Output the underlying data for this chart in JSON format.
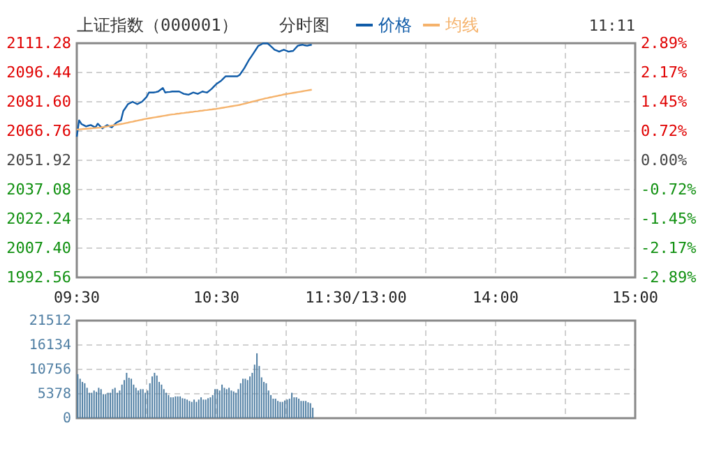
{
  "chart_data": [
    {
      "type": "line",
      "title": "上证指数（000001）",
      "subtitle": "分时图",
      "annotations": [
        "11:11"
      ],
      "legend": "top",
      "categories": [
        "09:30",
        null,
        null,
        null,
        null,
        null,
        null,
        null,
        null,
        null,
        null,
        null,
        null,
        null,
        null,
        null,
        null,
        null,
        null,
        null,
        null,
        null,
        null,
        null,
        null,
        null,
        null,
        null,
        null,
        null,
        null,
        null,
        null,
        null,
        null,
        null,
        null,
        null,
        null,
        null,
        null,
        null,
        null,
        null,
        null,
        null,
        null,
        null,
        null,
        null,
        null,
        null,
        null,
        null,
        null,
        null,
        null,
        null,
        null,
        null,
        "10:30",
        null,
        null,
        null,
        null,
        null,
        null,
        null,
        null,
        null,
        null,
        null,
        null,
        null,
        null,
        null,
        null,
        null,
        null,
        null,
        null,
        null,
        null,
        null,
        null,
        null,
        null,
        null,
        null,
        null,
        null,
        null,
        null,
        null,
        null,
        null,
        null,
        null,
        null,
        null,
        null,
        null,
        null,
        null,
        null,
        null,
        null,
        null,
        null,
        null,
        null,
        null,
        null,
        null,
        null,
        null,
        null,
        null,
        null,
        null,
        "11:30/13:00",
        null,
        null,
        null,
        null,
        null,
        null,
        null,
        null,
        null,
        null,
        null,
        null,
        null,
        null,
        null,
        null,
        null,
        null,
        null,
        null,
        null,
        null,
        null,
        null,
        null,
        null,
        null,
        null,
        null,
        null,
        null,
        null,
        null,
        null,
        null,
        null,
        null,
        null,
        null,
        null,
        null,
        null,
        null,
        null,
        null,
        null,
        null,
        null,
        null,
        null,
        null,
        null,
        null,
        null,
        null,
        null,
        null,
        null,
        null,
        "14:00",
        null,
        null,
        null,
        null,
        null,
        null,
        null,
        null,
        null,
        null,
        null,
        null,
        null,
        null,
        null,
        null,
        null,
        null,
        null,
        null,
        null,
        null,
        null,
        null,
        null,
        null,
        null,
        null,
        null,
        null,
        null,
        null,
        null,
        null,
        null,
        null,
        null,
        null,
        null,
        null,
        null,
        null,
        null,
        null,
        null,
        null,
        null,
        null,
        null,
        null,
        null,
        null,
        null,
        null,
        null,
        null,
        null,
        null,
        null,
        "15:00"
      ],
      "ylim": [
        1992.56,
        2111.28
      ],
      "yticks": [
        1992.56,
        {
          "value": 2007.4,
          "label": "2007.40"
        },
        2022.24,
        2037.08,
        2051.92,
        2066.76,
        {
          "value": 2081.6,
          "label": "2081.60"
        },
        2096.44,
        2111.28
      ],
      "y2lim": [
        -2.89,
        2.89
      ],
      "y2ticks": [
        {
          "value": -2.89,
          "label": "-2.89%"
        },
        {
          "value": -2.17,
          "label": "-2.17%"
        },
        {
          "value": -1.45,
          "label": "-1.45%"
        },
        {
          "value": -0.72,
          "label": "-0.72%"
        },
        {
          "value": 0,
          "label": "0.00%"
        },
        {
          "value": 0.72,
          "label": "0.72%"
        },
        {
          "value": 1.45,
          "label": "1.45%"
        },
        {
          "value": 2.17,
          "label": "2.17%"
        },
        {
          "value": 2.89,
          "label": "2.89%"
        }
      ],
      "grid": true,
      "marker": "none",
      "line_style": "solid",
      "series": [
        {
          "name": "价格",
          "color": "#0f5ba8",
          "values": [
            2063.9,
            2072.2,
            2070.3,
            2069.7,
            2069.1,
            2069.5,
            2069.8,
            2069.2,
            2068.6,
            2070.5,
            2069.3,
            2068.1,
            2069.0,
            2069.8,
            2069.2,
            2068.6,
            2069.8,
            2071.0,
            2071.6,
            2072.2,
            2076.9,
            2078.6,
            2080.4,
            2081.0,
            2081.6,
            2081.0,
            2080.4,
            2081.0,
            2081.6,
            2082.8,
            2084.0,
            2086.3,
            2086.3,
            2086.3,
            2086.5,
            2086.8,
            2087.7,
            2088.6,
            2086.3,
            2086.5,
            2086.6,
            2086.8,
            2086.8,
            2086.8,
            2086.8,
            2086.2,
            2085.6,
            2085.4,
            2085.2,
            2085.7,
            2086.3,
            2086.0,
            2085.6,
            2086.2,
            2086.8,
            2086.5,
            2086.3,
            2087.2,
            2088.2,
            2089.4,
            2090.6,
            2091.4,
            2092.2,
            2093.4,
            2094.5,
            2094.5,
            2094.5,
            2094.5,
            2094.5,
            2094.5,
            2095.2,
            2096.9,
            2098.6,
            2100.7,
            2102.8,
            2104.5,
            2106.3,
            2108.1,
            2109.9,
            2110.5,
            2111.2,
            2111.2,
            2111.2,
            2110.2,
            2109.1,
            2108.0,
            2107.5,
            2107.0,
            2107.5,
            2108.0,
            2107.5,
            2107.0,
            2107.2,
            2107.4,
            2108.7,
            2110.0,
            2110.3,
            2110.5,
            2110.2,
            2110.0,
            2110.3,
            2110.5,
            null,
            null,
            null,
            null,
            null,
            null,
            null,
            null,
            null,
            null,
            null,
            null,
            null,
            null,
            null,
            null,
            null,
            null,
            null,
            null,
            null,
            null,
            null,
            null,
            null,
            null,
            null,
            null,
            null,
            null,
            null,
            null,
            null,
            null,
            null,
            null,
            null,
            null,
            null,
            null,
            null,
            null,
            null,
            null,
            null,
            null,
            null,
            null,
            null,
            null,
            null,
            null,
            null,
            null,
            null,
            null,
            null,
            null,
            null,
            null,
            null,
            null,
            null,
            null,
            null,
            null,
            null,
            null,
            null,
            null,
            null,
            null,
            null,
            null,
            null,
            null,
            null,
            null,
            null,
            null,
            null,
            null,
            null,
            null,
            null,
            null,
            null,
            null,
            null,
            null,
            null,
            null,
            null,
            null,
            null,
            null,
            null,
            null,
            null,
            null,
            null,
            null,
            null,
            null,
            null,
            null,
            null,
            null,
            null,
            null,
            null,
            null,
            null,
            null,
            null,
            null,
            null,
            null,
            null,
            null,
            null,
            null,
            null,
            null,
            null,
            null,
            null,
            null,
            null,
            null,
            null,
            null,
            null,
            null,
            null,
            null,
            null,
            null,
            null
          ]
        },
        {
          "name": "均线",
          "color": "#f5b26b",
          "values": [
            2067.5,
            2067.6,
            2067.7,
            2067.8,
            2067.9,
            2068.0,
            2068.1,
            2068.2,
            2068.3,
            2068.4,
            2068.5,
            2068.7,
            2068.9,
            2069.1,
            2069.3,
            2069.5,
            2069.7,
            2069.9,
            2070.1,
            2070.3,
            2070.5,
            2070.8,
            2071.0,
            2071.3,
            2071.5,
            2071.8,
            2072.0,
            2072.3,
            2072.5,
            2072.8,
            2073.0,
            2073.2,
            2073.4,
            2073.6,
            2073.8,
            2074.0,
            2074.2,
            2074.4,
            2074.6,
            2074.8,
            2075.0,
            2075.2,
            2075.3,
            2075.5,
            2075.6,
            2075.8,
            2075.9,
            2076.1,
            2076.2,
            2076.4,
            2076.5,
            2076.7,
            2076.8,
            2077.0,
            2077.1,
            2077.3,
            2077.4,
            2077.6,
            2077.7,
            2077.9,
            2078.0,
            2078.2,
            2078.4,
            2078.6,
            2078.8,
            2079.0,
            2079.2,
            2079.4,
            2079.6,
            2079.8,
            2080.0,
            2080.3,
            2080.6,
            2080.9,
            2081.2,
            2081.5,
            2081.8,
            2082.1,
            2082.4,
            2082.7,
            2083.0,
            2083.3,
            2083.5,
            2083.8,
            2084.0,
            2084.3,
            2084.5,
            2084.8,
            2085.0,
            2085.3,
            2085.5,
            2085.7,
            2085.9,
            2086.1,
            2086.3,
            2086.5,
            2086.7,
            2086.9,
            2087.1,
            2087.3,
            2087.5,
            2087.7,
            null,
            null,
            null,
            null,
            null,
            null,
            null,
            null,
            null,
            null,
            null,
            null,
            null,
            null,
            null,
            null,
            null,
            null,
            null,
            null,
            null,
            null,
            null,
            null,
            null,
            null,
            null,
            null,
            null,
            null,
            null,
            null,
            null,
            null,
            null,
            null,
            null,
            null,
            null,
            null,
            null,
            null,
            null,
            null,
            null,
            null,
            null,
            null,
            null,
            null,
            null,
            null,
            null,
            null,
            null,
            null,
            null,
            null,
            null,
            null,
            null,
            null,
            null,
            null,
            null,
            null,
            null,
            null,
            null,
            null,
            null,
            null,
            null,
            null,
            null,
            null,
            null,
            null,
            null,
            null,
            null,
            null,
            null,
            null,
            null,
            null,
            null,
            null,
            null,
            null,
            null,
            null,
            null,
            null,
            null,
            null,
            null,
            null,
            null,
            null,
            null,
            null,
            null,
            null,
            null,
            null,
            null,
            null,
            null,
            null,
            null,
            null,
            null,
            null,
            null,
            null,
            null,
            null,
            null,
            null,
            null,
            null,
            null,
            null,
            null,
            null,
            null,
            null,
            null,
            null,
            null,
            null,
            null,
            null,
            null,
            null,
            null,
            null,
            null
          ]
        }
      ]
    },
    {
      "type": "bar",
      "tick_labels": "y",
      "grid": true,
      "categories": [
        null,
        null,
        null,
        null,
        null,
        null,
        null,
        null,
        null,
        null,
        null,
        null,
        null,
        null,
        null,
        null,
        null,
        null,
        null,
        null,
        null,
        null,
        null,
        null,
        null,
        null,
        null,
        null,
        null,
        null,
        null,
        null,
        null,
        null,
        null,
        null,
        null,
        null,
        null,
        null,
        null,
        null,
        null,
        null,
        null,
        null,
        null,
        null,
        null,
        null,
        null,
        null,
        null,
        null,
        null,
        null,
        null,
        null,
        null,
        null,
        null,
        null,
        null,
        null,
        null,
        null,
        null,
        null,
        null,
        null,
        null,
        null,
        null,
        null,
        null,
        null,
        null,
        null,
        null,
        null,
        null,
        null,
        null,
        null,
        null,
        null,
        null,
        null,
        null,
        null,
        null,
        null,
        null,
        null,
        null,
        null,
        null,
        null,
        null,
        null,
        null,
        null,
        null,
        null,
        null,
        null,
        null,
        null,
        null,
        null,
        null,
        null,
        null,
        null,
        null,
        null,
        null,
        null,
        null,
        null,
        null,
        null,
        null,
        null,
        null,
        null,
        null,
        null,
        null,
        null,
        null,
        null,
        null,
        null,
        null,
        null,
        null,
        null,
        null,
        null,
        null,
        null,
        null,
        null,
        null,
        null,
        null,
        null,
        null,
        null,
        null,
        null,
        null,
        null,
        null,
        null,
        null,
        null,
        null,
        null,
        null,
        null,
        null,
        null,
        null,
        null,
        null,
        null,
        null,
        null,
        null,
        null,
        null,
        null,
        null,
        null,
        null,
        null,
        null,
        null,
        null,
        null,
        null,
        null,
        null,
        null,
        null,
        null,
        null,
        null,
        null,
        null,
        null,
        null,
        null,
        null,
        null,
        null,
        null,
        null,
        null,
        null,
        null,
        null,
        null,
        null,
        null,
        null,
        null,
        null,
        null,
        null,
        null,
        null,
        null,
        null,
        null,
        null,
        null,
        null,
        null,
        null,
        null,
        null,
        null,
        null,
        null,
        null,
        null,
        null,
        null,
        null,
        null,
        null,
        null,
        null,
        null,
        null,
        null,
        null,
        null
      ],
      "ylim": [
        0,
        21512
      ],
      "yticks": [
        0,
        5378,
        10756,
        16134,
        21512
      ],
      "series": [
        {
          "color": "#4f7ea3",
          "values": [
            9700,
            8700,
            8000,
            7700,
            6700,
            5600,
            5600,
            6100,
            5800,
            6700,
            6400,
            5300,
            5300,
            5600,
            5600,
            6400,
            6700,
            5600,
            6100,
            7400,
            8400,
            10000,
            8900,
            8700,
            7400,
            6700,
            6100,
            6400,
            6400,
            5600,
            6100,
            7700,
            9200,
            10000,
            9400,
            8000,
            7400,
            6400,
            5600,
            5100,
            4600,
            4600,
            4800,
            4800,
            4800,
            4400,
            4300,
            4100,
            3800,
            3600,
            4100,
            3600,
            4100,
            4600,
            4100,
            4100,
            4400,
            4600,
            5100,
            6400,
            6400,
            6100,
            7400,
            6700,
            6400,
            6700,
            6100,
            5900,
            5600,
            6400,
            7700,
            8700,
            8700,
            8400,
            9200,
            10000,
            11800,
            14300,
            11500,
            9000,
            8000,
            7700,
            6100,
            5100,
            4300,
            4300,
            3800,
            3600,
            3600,
            3900,
            4100,
            4300,
            5600,
            4600,
            4600,
            4300,
            3800,
            3800,
            3800,
            3500,
            3300,
            2300,
            null,
            null,
            null,
            null,
            null,
            null,
            null,
            null,
            null,
            null,
            null,
            null,
            null,
            null,
            null,
            null,
            null,
            null,
            null,
            null,
            null,
            null,
            null,
            null,
            null,
            null,
            null,
            null,
            null,
            null,
            null,
            null,
            null,
            null,
            null,
            null,
            null,
            null,
            null,
            null,
            null,
            null,
            null,
            null,
            null,
            null,
            null,
            null,
            null,
            null,
            null,
            null,
            null,
            null,
            null,
            null,
            null,
            null,
            null,
            null,
            null,
            null,
            null,
            null,
            null,
            null,
            null,
            null,
            null,
            null,
            null,
            null,
            null,
            null,
            null,
            null,
            null,
            null,
            null,
            null,
            null,
            null,
            null,
            null,
            null,
            null,
            null,
            null,
            null,
            null,
            null,
            null,
            null,
            null,
            null,
            null,
            null,
            null,
            null,
            null,
            null,
            null,
            null,
            null,
            null,
            null,
            null,
            null,
            null,
            null,
            null,
            null,
            null,
            null,
            null,
            null,
            null,
            null,
            null,
            null,
            null,
            null,
            null,
            null,
            null,
            null,
            null,
            null,
            null,
            null,
            null,
            null,
            null,
            null,
            null,
            null,
            null,
            null,
            null
          ]
        }
      ]
    }
  ]
}
